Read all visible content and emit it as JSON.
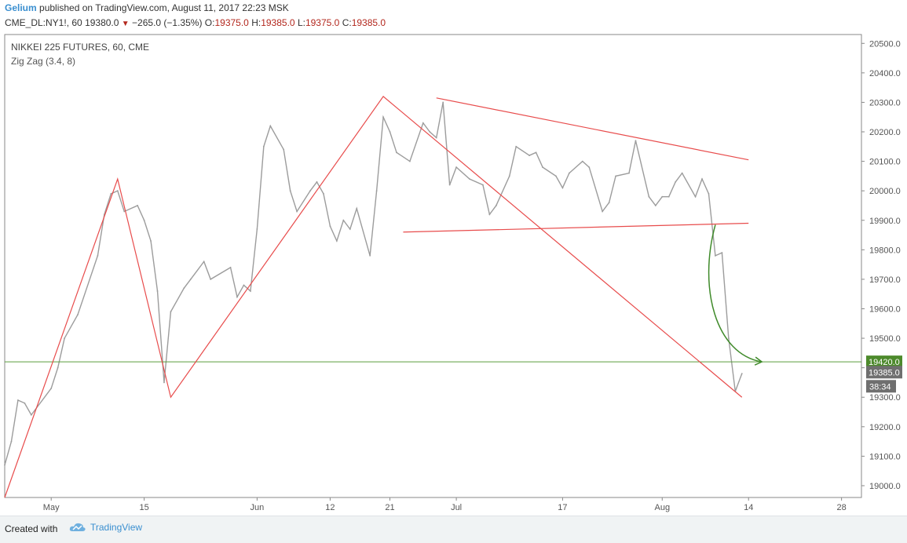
{
  "header": {
    "user": "Gelium",
    "published_text": "published on TradingView.com, August 11, 2017 22:23 MSK",
    "symbol": "CME_DL:NY1!, 60",
    "last": "19380.0",
    "change": "−265.0 (−1.35%)",
    "o_label": "O:",
    "o_value": "19375.0",
    "h_label": "H:",
    "h_value": "19385.0",
    "l_label": "L:",
    "l_value": "19375.0",
    "c_label": "C:",
    "c_value": "19385.0"
  },
  "legend": {
    "title": "NIKKEI 225 FUTURES, 60, CME",
    "indicator": "Zig Zag (3.4, 8)"
  },
  "footer": {
    "created_with": "Created with",
    "brand": "TradingView"
  },
  "colors": {
    "price": "#9c9c9c",
    "trend": "#e84c4c",
    "hline": "#5a9e3c",
    "arrow": "#3f8a2a",
    "hline_tag": "#4d8a2c",
    "price_tag": "#6f6f6f"
  },
  "chart_data": {
    "type": "line",
    "title": "NIKKEI 225 FUTURES, 60, CME",
    "x_ticks": [
      "May",
      "15",
      "Jun",
      "12",
      "21",
      "Jul",
      "17",
      "Aug",
      "14",
      "28"
    ],
    "y_ticks": [
      19000.0,
      19100.0,
      19200.0,
      19300.0,
      19400.0,
      19500.0,
      19600.0,
      19700.0,
      19800.0,
      19900.0,
      20000.0,
      20100.0,
      20200.0,
      20300.0,
      20400.0,
      20500.0
    ],
    "ylim": [
      18960,
      20530
    ],
    "xlim": [
      "2017-04-24",
      "2017-08-31"
    ],
    "price_series": [
      {
        "x": "2017-04-24",
        "y": 19070
      },
      {
        "x": "2017-04-25",
        "y": 19150
      },
      {
        "x": "2017-04-26",
        "y": 19290
      },
      {
        "x": "2017-04-27",
        "y": 19280
      },
      {
        "x": "2017-04-28",
        "y": 19240
      },
      {
        "x": "2017-05-01",
        "y": 19330
      },
      {
        "x": "2017-05-02",
        "y": 19400
      },
      {
        "x": "2017-05-03",
        "y": 19500
      },
      {
        "x": "2017-05-05",
        "y": 19580
      },
      {
        "x": "2017-05-08",
        "y": 19780
      },
      {
        "x": "2017-05-09",
        "y": 19920
      },
      {
        "x": "2017-05-10",
        "y": 19990
      },
      {
        "x": "2017-05-11",
        "y": 20000
      },
      {
        "x": "2017-05-12",
        "y": 19930
      },
      {
        "x": "2017-05-14",
        "y": 19950
      },
      {
        "x": "2017-05-15",
        "y": 19900
      },
      {
        "x": "2017-05-16",
        "y": 19830
      },
      {
        "x": "2017-05-17",
        "y": 19660
      },
      {
        "x": "2017-05-18",
        "y": 19350
      },
      {
        "x": "2017-05-19",
        "y": 19590
      },
      {
        "x": "2017-05-21",
        "y": 19670
      },
      {
        "x": "2017-05-22",
        "y": 19700
      },
      {
        "x": "2017-05-24",
        "y": 19760
      },
      {
        "x": "2017-05-25",
        "y": 19700
      },
      {
        "x": "2017-05-28",
        "y": 19740
      },
      {
        "x": "2017-05-29",
        "y": 19640
      },
      {
        "x": "2017-05-30",
        "y": 19680
      },
      {
        "x": "2017-05-31",
        "y": 19660
      },
      {
        "x": "2017-06-01",
        "y": 19870
      },
      {
        "x": "2017-06-02",
        "y": 20150
      },
      {
        "x": "2017-06-03",
        "y": 20220
      },
      {
        "x": "2017-06-05",
        "y": 20140
      },
      {
        "x": "2017-06-06",
        "y": 20000
      },
      {
        "x": "2017-06-07",
        "y": 19930
      },
      {
        "x": "2017-06-09",
        "y": 20000
      },
      {
        "x": "2017-06-10",
        "y": 20030
      },
      {
        "x": "2017-06-11",
        "y": 19990
      },
      {
        "x": "2017-06-12",
        "y": 19880
      },
      {
        "x": "2017-06-13",
        "y": 19830
      },
      {
        "x": "2017-06-14",
        "y": 19900
      },
      {
        "x": "2017-06-15",
        "y": 19870
      },
      {
        "x": "2017-06-16",
        "y": 19940
      },
      {
        "x": "2017-06-18",
        "y": 19780
      },
      {
        "x": "2017-06-19",
        "y": 20000
      },
      {
        "x": "2017-06-20",
        "y": 20250
      },
      {
        "x": "2017-06-21",
        "y": 20200
      },
      {
        "x": "2017-06-22",
        "y": 20130
      },
      {
        "x": "2017-06-24",
        "y": 20100
      },
      {
        "x": "2017-06-26",
        "y": 20230
      },
      {
        "x": "2017-06-27",
        "y": 20200
      },
      {
        "x": "2017-06-28",
        "y": 20180
      },
      {
        "x": "2017-06-29",
        "y": 20300
      },
      {
        "x": "2017-06-30",
        "y": 20020
      },
      {
        "x": "2017-07-01",
        "y": 20080
      },
      {
        "x": "2017-07-03",
        "y": 20040
      },
      {
        "x": "2017-07-05",
        "y": 20020
      },
      {
        "x": "2017-07-06",
        "y": 19920
      },
      {
        "x": "2017-07-07",
        "y": 19950
      },
      {
        "x": "2017-07-09",
        "y": 20050
      },
      {
        "x": "2017-07-10",
        "y": 20150
      },
      {
        "x": "2017-07-12",
        "y": 20120
      },
      {
        "x": "2017-07-13",
        "y": 20130
      },
      {
        "x": "2017-07-14",
        "y": 20080
      },
      {
        "x": "2017-07-16",
        "y": 20050
      },
      {
        "x": "2017-07-17",
        "y": 20010
      },
      {
        "x": "2017-07-18",
        "y": 20060
      },
      {
        "x": "2017-07-20",
        "y": 20100
      },
      {
        "x": "2017-07-21",
        "y": 20080
      },
      {
        "x": "2017-07-23",
        "y": 19930
      },
      {
        "x": "2017-07-24",
        "y": 19960
      },
      {
        "x": "2017-07-25",
        "y": 20050
      },
      {
        "x": "2017-07-27",
        "y": 20060
      },
      {
        "x": "2017-07-28",
        "y": 20170
      },
      {
        "x": "2017-07-30",
        "y": 19980
      },
      {
        "x": "2017-07-31",
        "y": 19950
      },
      {
        "x": "2017-08-01",
        "y": 19980
      },
      {
        "x": "2017-08-02",
        "y": 19980
      },
      {
        "x": "2017-08-03",
        "y": 20030
      },
      {
        "x": "2017-08-04",
        "y": 20060
      },
      {
        "x": "2017-08-06",
        "y": 19980
      },
      {
        "x": "2017-08-07",
        "y": 20040
      },
      {
        "x": "2017-08-08",
        "y": 19990
      },
      {
        "x": "2017-08-09",
        "y": 19780
      },
      {
        "x": "2017-08-10",
        "y": 19790
      },
      {
        "x": "2017-08-11",
        "y": 19500
      },
      {
        "x": "2017-08-12",
        "y": 19320
      },
      {
        "x": "2017-08-13",
        "y": 19380
      }
    ],
    "zigzag": [
      {
        "x": "2017-04-24",
        "y": 18960
      },
      {
        "x": "2017-05-11",
        "y": 20040
      },
      {
        "x": "2017-05-19",
        "y": 19300
      },
      {
        "x": "2017-06-20",
        "y": 20320
      },
      {
        "x": "2017-08-13",
        "y": 19300
      }
    ],
    "trendlines": [
      {
        "x1": "2017-06-28",
        "y1": 20315,
        "x2": "2017-08-14",
        "y2": 20105
      },
      {
        "x1": "2017-06-23",
        "y1": 19860,
        "x2": "2017-08-14",
        "y2": 19890
      }
    ],
    "horizontal_line": 19420.0,
    "price_tags": [
      {
        "label": "19420.0",
        "y": 19420
      },
      {
        "label": "19385.0",
        "y": 19385
      }
    ],
    "countdown": "38:34",
    "grid": false
  }
}
